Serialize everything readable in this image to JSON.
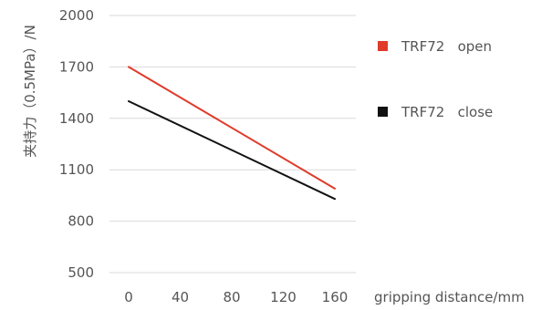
{
  "chart_data": {
    "type": "line",
    "title": "",
    "xlabel": "gripping distance/mm",
    "ylabel": "夹持力（0.5MPa）/N",
    "x": [
      0,
      160
    ],
    "x_ticks": [
      "0",
      "40",
      "80",
      "120",
      "160"
    ],
    "y_ticks": [
      "2000",
      "1700",
      "1400",
      "1100",
      "800",
      "500"
    ],
    "xlim": [
      0,
      160
    ],
    "ylim": [
      500,
      2000
    ],
    "grid": "horizontal",
    "legend_position": "right",
    "series": [
      {
        "name": "TRF72   open",
        "color": "#e03a2a",
        "x": [
          0,
          160
        ],
        "values": [
          1700,
          990
        ]
      },
      {
        "name": "TRF72   close",
        "color": "#111111",
        "x": [
          0,
          160
        ],
        "values": [
          1500,
          930
        ]
      }
    ]
  }
}
